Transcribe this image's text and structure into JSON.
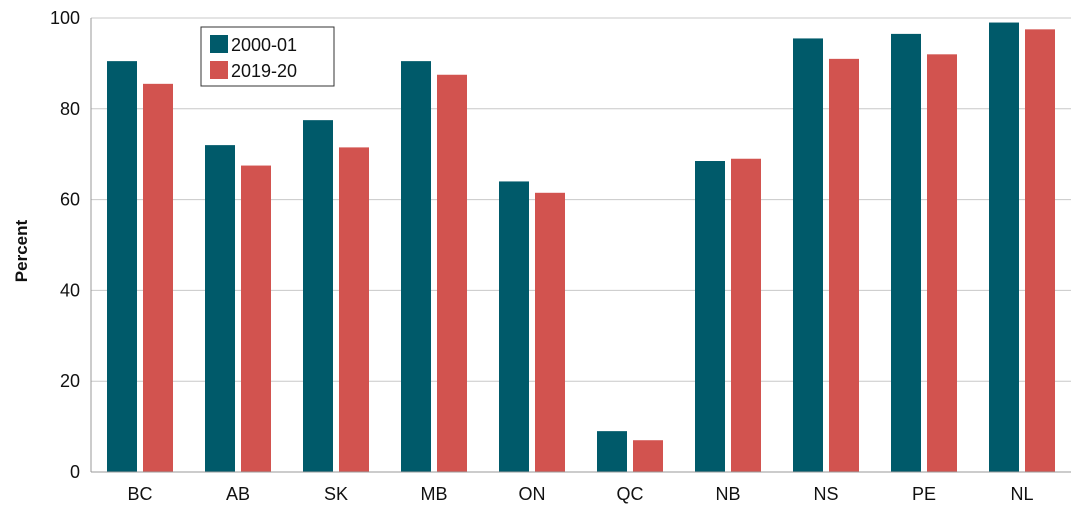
{
  "chart_data": {
    "type": "bar",
    "categories": [
      "BC",
      "AB",
      "SK",
      "MB",
      "ON",
      "QC",
      "NB",
      "NS",
      "PE",
      "NL"
    ],
    "series": [
      {
        "name": "2000-01",
        "color": "#005a6a",
        "values": [
          90.5,
          72,
          77.5,
          90.5,
          64,
          9,
          68.5,
          95.5,
          96.5,
          99
        ]
      },
      {
        "name": "2019-20",
        "color": "#d2534f",
        "values": [
          85.5,
          67.5,
          71.5,
          87.5,
          61.5,
          7,
          69,
          91,
          92,
          97.5
        ]
      }
    ],
    "ylabel": "Percent",
    "xlabel": "",
    "ylim": [
      0,
      100
    ],
    "yticks": [
      0,
      20,
      40,
      60,
      80,
      100
    ],
    "grid": true,
    "legend_position": "top-left"
  }
}
